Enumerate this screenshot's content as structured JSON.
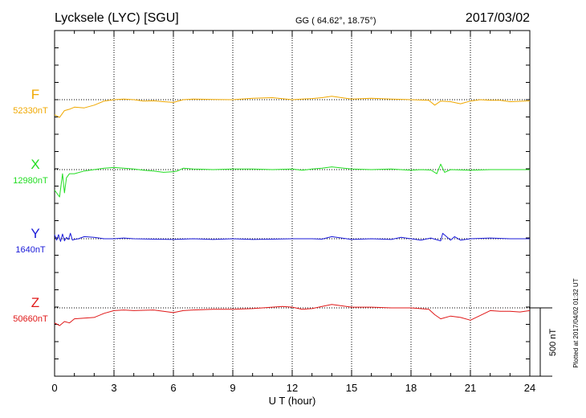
{
  "header": {
    "station": "Lycksele (LYC)  [SGU]",
    "coords": "GG ( 64.62°,  18.75°)",
    "date": "2017/03/02"
  },
  "footer": {
    "plotted": "Plotted at 2017/04/02 01:32 UT"
  },
  "chart_data": {
    "type": "line",
    "title": "Lycksele (LYC)  [SGU]",
    "xlabel": "U T (hour)",
    "xlim": [
      0,
      24
    ],
    "xticks": [
      "0",
      "3",
      "6",
      "9",
      "12",
      "15",
      "18",
      "21",
      "24"
    ],
    "grid": true,
    "scale_bar": "500 nT",
    "series": [
      {
        "name": "F",
        "baseline": "52330nT",
        "color": "#f0a800",
        "x": [
          0,
          0.25,
          0.5,
          0.75,
          1,
          1.5,
          2,
          2.5,
          3,
          3.5,
          4,
          4.5,
          5,
          5.5,
          6,
          6.5,
          7,
          8,
          9,
          10,
          11,
          12,
          12.5,
          13,
          13.5,
          14,
          15,
          16,
          17,
          18,
          18.9,
          19.2,
          19.5,
          20,
          20.5,
          21,
          21.5,
          22,
          22.5,
          23,
          23.5,
          24
        ],
        "values": [
          -110,
          -130,
          -80,
          -70,
          -55,
          -60,
          -40,
          -10,
          0,
          5,
          0,
          -10,
          -8,
          -15,
          -20,
          0,
          5,
          2,
          0,
          10,
          15,
          0,
          5,
          8,
          15,
          25,
          5,
          10,
          5,
          0,
          -5,
          -40,
          -10,
          -15,
          -30,
          -10,
          0,
          -5,
          -5,
          -15,
          -12,
          -8
        ]
      },
      {
        "name": "X",
        "baseline": "12980nT",
        "color": "#22dd22",
        "x": [
          0,
          0.25,
          0.4,
          0.5,
          0.6,
          0.75,
          1,
          1.5,
          2,
          2.5,
          3,
          3.5,
          4,
          4.5,
          5,
          5.5,
          6,
          6.2,
          6.5,
          7,
          8,
          9,
          10,
          11,
          12,
          12.5,
          13,
          13.5,
          14,
          15,
          16,
          17,
          18,
          18.5,
          19,
          19.3,
          19.5,
          19.7,
          20,
          21,
          22,
          23,
          24
        ],
        "values": [
          -150,
          -200,
          -30,
          -170,
          -60,
          -30,
          -30,
          -10,
          0,
          10,
          15,
          10,
          5,
          -5,
          -10,
          -20,
          -15,
          -10,
          10,
          5,
          0,
          5,
          5,
          0,
          5,
          -5,
          5,
          10,
          20,
          5,
          0,
          5,
          -5,
          0,
          -3,
          -30,
          40,
          -20,
          0,
          -5,
          0,
          0,
          0
        ]
      },
      {
        "name": "Y",
        "baseline": "1640nT",
        "color": "#1a1ad8",
        "x": [
          0,
          0.1,
          0.2,
          0.3,
          0.4,
          0.5,
          0.6,
          0.7,
          0.8,
          0.9,
          1,
          1.2,
          1.5,
          2,
          2.5,
          3,
          3.5,
          4,
          5,
          6,
          7,
          8,
          9,
          10,
          11,
          12,
          13,
          13.5,
          14,
          15,
          16,
          17,
          17.5,
          18,
          18.5,
          19,
          19.5,
          19.6,
          20,
          20.2,
          20.5,
          21,
          22,
          23,
          24
        ],
        "values": [
          30,
          -10,
          30,
          -20,
          35,
          -15,
          10,
          -5,
          40,
          -10,
          -5,
          0,
          15,
          10,
          0,
          0,
          5,
          0,
          -3,
          -5,
          0,
          -5,
          0,
          -5,
          -3,
          0,
          0,
          -3,
          15,
          -5,
          0,
          -5,
          10,
          0,
          -10,
          5,
          -15,
          40,
          -10,
          15,
          -10,
          0,
          5,
          0,
          0
        ]
      },
      {
        "name": "Z",
        "baseline": "50660nT",
        "color": "#e01818",
        "x": [
          0,
          0.25,
          0.5,
          0.75,
          1,
          1.5,
          2,
          2.5,
          3,
          3.5,
          4,
          5,
          6,
          6.5,
          7,
          8,
          9,
          10,
          11,
          11.5,
          12,
          12.5,
          13,
          13.5,
          14,
          15,
          16,
          17,
          18,
          18.9,
          19.2,
          19.5,
          20,
          20.5,
          21,
          21.5,
          22,
          22.5,
          23,
          23.5,
          24
        ],
        "values": [
          -110,
          -130,
          -100,
          -110,
          -80,
          -75,
          -70,
          -40,
          -20,
          -15,
          -20,
          -15,
          -35,
          -20,
          -15,
          -10,
          -10,
          -5,
          5,
          10,
          5,
          -10,
          -5,
          10,
          25,
          5,
          5,
          0,
          0,
          -10,
          -50,
          -80,
          -60,
          -70,
          -90,
          -55,
          -20,
          -25,
          -25,
          -30,
          -20
        ]
      }
    ]
  }
}
